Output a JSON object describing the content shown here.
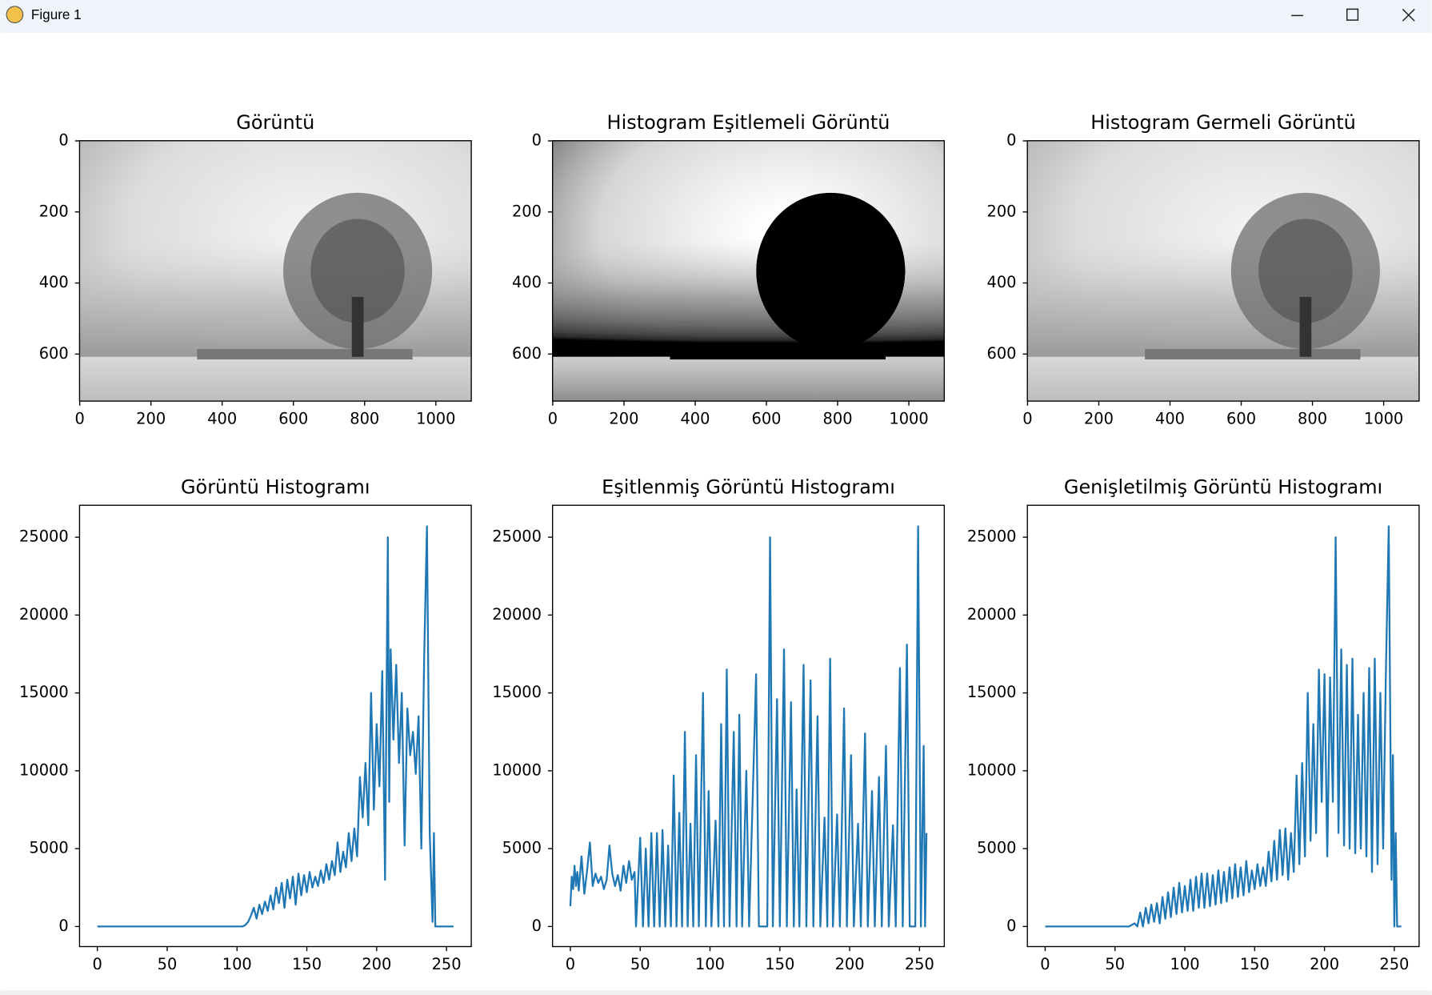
{
  "window": {
    "title": "Figure 1"
  },
  "chart_data": [
    {
      "type": "image",
      "title": "Görüntü",
      "xlim": [
        -0.5,
        1099.5
      ],
      "ylim": [
        732.5,
        -0.5
      ],
      "xticks": [
        0,
        200,
        400,
        600,
        800,
        1000
      ],
      "yticks": [
        0,
        200,
        400,
        600
      ]
    },
    {
      "type": "image",
      "title": "Histogram Eşitlemeli Görüntü",
      "xlim": [
        -0.5,
        1099.5
      ],
      "ylim": [
        732.5,
        -0.5
      ],
      "xticks": [
        0,
        200,
        400,
        600,
        800,
        1000
      ],
      "yticks": [
        0,
        200,
        400,
        600
      ]
    },
    {
      "type": "image",
      "title": "Histogram Germeli Görüntü",
      "xlim": [
        -0.5,
        1099.5
      ],
      "ylim": [
        732.5,
        -0.5
      ],
      "xticks": [
        0,
        200,
        400,
        600,
        800,
        1000
      ],
      "yticks": [
        0,
        200,
        400,
        600
      ]
    },
    {
      "type": "line",
      "title": "Görüntü Histogramı",
      "color": "#1f77b4",
      "xlim": [
        -12.75,
        267.75
      ],
      "ylim": [
        -1290,
        27050
      ],
      "xticks": [
        0,
        50,
        100,
        150,
        200,
        250
      ],
      "yticks": [
        0,
        5000,
        10000,
        15000,
        20000,
        25000
      ],
      "x": [
        0,
        104,
        106,
        108,
        110,
        112,
        114,
        116,
        118,
        120,
        122,
        124,
        126,
        128,
        130,
        132,
        134,
        136,
        138,
        140,
        142,
        144,
        146,
        148,
        150,
        152,
        154,
        156,
        158,
        160,
        162,
        164,
        166,
        168,
        170,
        172,
        174,
        176,
        178,
        180,
        182,
        184,
        186,
        188,
        190,
        192,
        194,
        196,
        198,
        200,
        202,
        204,
        206,
        208,
        209,
        210,
        212,
        214,
        216,
        218,
        220,
        222,
        224,
        226,
        228,
        230,
        232,
        234,
        236,
        238,
        240,
        241,
        242,
        244,
        255
      ],
      "values": [
        0,
        0,
        100,
        300,
        700,
        1200,
        500,
        1400,
        800,
        1600,
        1000,
        2000,
        1100,
        2500,
        1500,
        2800,
        1200,
        3000,
        1800,
        3200,
        1400,
        3400,
        2000,
        3300,
        2200,
        3500,
        2500,
        3200,
        2600,
        3600,
        2800,
        4000,
        3000,
        4200,
        3300,
        5400,
        3500,
        4800,
        3800,
        6000,
        4200,
        6300,
        4500,
        9600,
        7000,
        10500,
        6500,
        15000,
        7500,
        13000,
        9000,
        16400,
        3000,
        25000,
        8000,
        17800,
        12000,
        16800,
        10500,
        15000,
        5200,
        14000,
        11000,
        12500,
        9800,
        13500,
        5000,
        17200,
        25700,
        6000,
        300,
        6000,
        0,
        0,
        0
      ]
    },
    {
      "type": "line",
      "title": "Eşitlenmiş Görüntü Histogramı",
      "color": "#1f77b4",
      "xlim": [
        -12.75,
        267.75
      ],
      "ylim": [
        -1290,
        27050
      ],
      "xticks": [
        0,
        50,
        100,
        150,
        200,
        250
      ],
      "yticks": [
        0,
        5000,
        10000,
        15000,
        20000,
        25000
      ],
      "x": [
        0,
        1,
        2,
        3,
        4,
        5,
        6,
        8,
        10,
        12,
        14,
        16,
        18,
        20,
        22,
        24,
        26,
        28,
        30,
        32,
        34,
        36,
        38,
        40,
        42,
        44,
        46,
        47,
        50,
        52,
        54,
        56,
        58,
        60,
        62,
        64,
        66,
        68,
        70,
        72,
        74,
        76,
        78,
        80,
        82,
        84,
        86,
        88,
        90,
        92,
        95,
        97,
        99,
        101,
        104,
        106,
        108,
        110,
        112,
        114,
        117,
        119,
        121,
        123,
        126,
        128,
        133,
        135,
        141,
        143,
        145,
        148,
        150,
        153,
        155,
        158,
        160,
        162,
        164,
        167,
        169,
        172,
        174,
        177,
        179,
        182,
        184,
        186,
        188,
        191,
        193,
        196,
        198,
        201,
        203,
        206,
        208,
        211,
        213,
        216,
        218,
        221,
        223,
        226,
        228,
        231,
        233,
        236,
        238,
        241,
        243,
        247,
        249,
        251,
        253,
        254,
        255
      ],
      "values": [
        1300,
        3200,
        2400,
        3900,
        2600,
        3500,
        2300,
        4500,
        2100,
        3600,
        5400,
        2600,
        3400,
        2800,
        3200,
        2400,
        3000,
        5200,
        3400,
        2600,
        3300,
        2300,
        3900,
        2800,
        4200,
        3000,
        3500,
        0,
        5700,
        0,
        5000,
        0,
        6000,
        0,
        6000,
        0,
        6200,
        0,
        5200,
        0,
        9700,
        0,
        7300,
        0,
        12500,
        0,
        6600,
        0,
        11000,
        0,
        15000,
        0,
        8700,
        0,
        6800,
        0,
        13000,
        0,
        16500,
        0,
        12500,
        0,
        13600,
        0,
        10000,
        0,
        16200,
        0,
        0,
        25000,
        0,
        14600,
        0,
        17800,
        0,
        14400,
        0,
        8800,
        0,
        16800,
        0,
        15800,
        0,
        13500,
        0,
        7000,
        0,
        17200,
        0,
        7200,
        0,
        14000,
        0,
        11000,
        0,
        6600,
        0,
        12400,
        0,
        8700,
        0,
        9600,
        0,
        11600,
        0,
        6500,
        0,
        16600,
        0,
        18100,
        0,
        0,
        25700,
        0,
        11600,
        0,
        6000
      ]
    },
    {
      "type": "line",
      "title": "Genişletilmiş Görüntü Histogramı",
      "color": "#1f77b4",
      "xlim": [
        -12.75,
        267.75
      ],
      "ylim": [
        -1290,
        27050
      ],
      "xticks": [
        0,
        50,
        100,
        150,
        200,
        250
      ],
      "yticks": [
        0,
        5000,
        10000,
        15000,
        20000,
        25000
      ],
      "x": [
        0,
        60,
        64,
        66,
        68,
        70,
        72,
        74,
        76,
        78,
        80,
        82,
        84,
        86,
        88,
        90,
        92,
        94,
        96,
        98,
        100,
        102,
        104,
        106,
        108,
        110,
        112,
        114,
        116,
        118,
        120,
        122,
        124,
        126,
        128,
        130,
        132,
        134,
        136,
        138,
        140,
        142,
        144,
        146,
        148,
        150,
        152,
        154,
        156,
        158,
        160,
        162,
        164,
        166,
        168,
        170,
        172,
        174,
        176,
        178,
        180,
        182,
        184,
        186,
        188,
        190,
        192,
        194,
        196,
        198,
        200,
        202,
        204,
        206,
        208,
        210,
        212,
        214,
        216,
        218,
        220,
        222,
        224,
        226,
        228,
        230,
        232,
        234,
        236,
        238,
        240,
        242,
        244,
        246,
        248,
        249,
        250,
        251,
        252,
        255
      ],
      "values": [
        0,
        0,
        200,
        0,
        900,
        0,
        1200,
        200,
        1400,
        300,
        1500,
        200,
        1900,
        500,
        2200,
        600,
        2500,
        800,
        2800,
        900,
        2600,
        1000,
        3000,
        1000,
        3200,
        1200,
        3400,
        1200,
        3400,
        1300,
        3300,
        1400,
        3600,
        1500,
        3500,
        1600,
        3800,
        1800,
        4000,
        1900,
        3800,
        2000,
        4200,
        2200,
        3600,
        2400,
        4000,
        2600,
        3800,
        2600,
        4800,
        2900,
        5500,
        3000,
        6200,
        3300,
        6300,
        3000,
        6000,
        3500,
        9700,
        4000,
        10500,
        4500,
        15000,
        5500,
        13000,
        6000,
        16500,
        8000,
        16200,
        4500,
        16000,
        8000,
        25000,
        6000,
        17800,
        5200,
        16800,
        5000,
        17200,
        4700,
        13600,
        5000,
        15000,
        4500,
        16600,
        3500,
        17200,
        4000,
        15000,
        5000,
        16500,
        25700,
        3000,
        11000,
        0,
        6000,
        0,
        0
      ]
    }
  ]
}
